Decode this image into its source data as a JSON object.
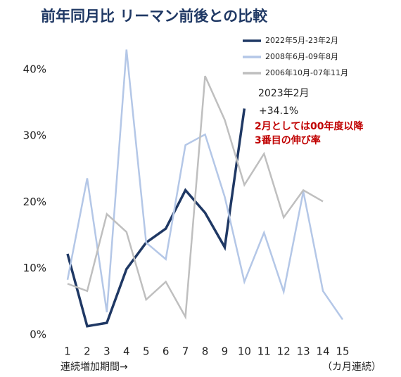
{
  "chart_data": {
    "type": "line",
    "title": "前年同月比 リーマン前後との比較",
    "categories": [
      "1",
      "2",
      "3",
      "4",
      "5",
      "6",
      "7",
      "8",
      "9",
      "10",
      "11",
      "12",
      "13",
      "14",
      "15"
    ],
    "series": [
      {
        "name": "2022年5月-23年2月",
        "color": "#1f3864",
        "values": [
          12.2,
          1.3,
          1.8,
          9.9,
          13.9,
          16.0,
          21.8,
          18.4,
          13.2,
          34.1,
          null,
          null,
          null,
          null,
          null
        ]
      },
      {
        "name": "2008年6月-09年8月",
        "color": "#b4c7e7",
        "values": [
          8.3,
          23.6,
          3.4,
          43.0,
          13.9,
          11.4,
          28.6,
          30.2,
          20.8,
          8.0,
          15.4,
          6.5,
          21.6,
          6.6,
          2.3
        ]
      },
      {
        "name": "2006年10月-07年11月",
        "color": "#bfbfbf",
        "values": [
          7.7,
          6.6,
          18.2,
          15.5,
          5.3,
          8.0,
          2.7,
          39.0,
          32.4,
          22.6,
          27.3,
          17.7,
          21.8,
          20.1,
          null
        ]
      }
    ],
    "ylim": [
      0,
      45
    ],
    "yticks": [
      {
        "value": 0,
        "label": "0%"
      },
      {
        "value": 10,
        "label": "10%"
      },
      {
        "value": 20,
        "label": "20%"
      },
      {
        "value": 30,
        "label": "30%"
      },
      {
        "value": 40,
        "label": "40%"
      }
    ],
    "grid": false,
    "x_label": "連続増加期間→",
    "x_unit_label": "（カ月連続）",
    "annotations": [
      "2023年2月",
      "+34.1%",
      "2月としては00年度以降",
      "3番目の伸び率"
    ]
  }
}
